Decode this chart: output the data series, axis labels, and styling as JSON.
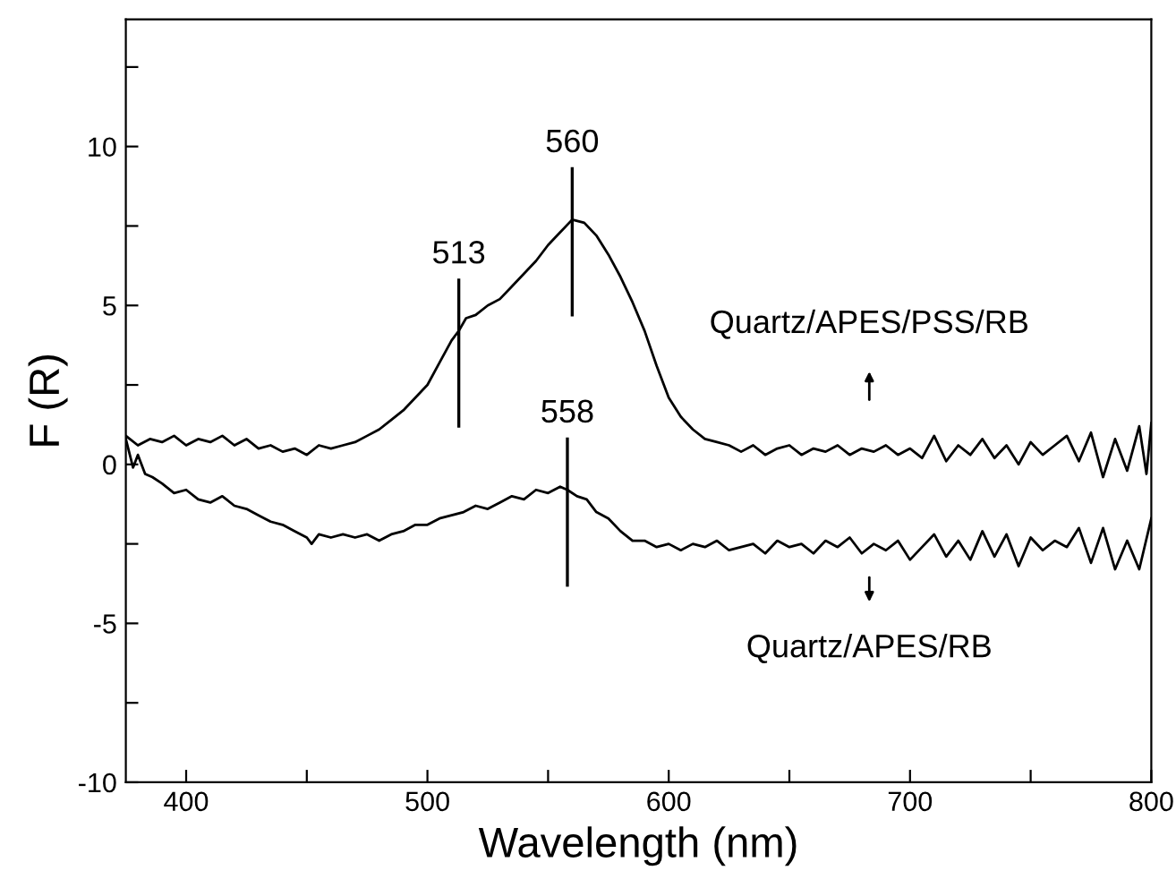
{
  "chart_data": {
    "type": "line",
    "xlabel": "Wavelength (nm)",
    "ylabel": "F (R)",
    "xlim": [
      375,
      800
    ],
    "ylim": [
      -10,
      14
    ],
    "xticks": [
      400,
      {
        "value": 450,
        "label": null
      },
      500,
      {
        "value": 550,
        "label": null
      },
      600,
      {
        "value": 650,
        "label": null
      },
      700,
      {
        "value": 750,
        "label": null
      },
      800
    ],
    "yticks": [
      -10,
      {
        "value": -7.5,
        "label": null
      },
      -5,
      {
        "value": -2.5,
        "label": null
      },
      0,
      {
        "value": 2.5,
        "label": null
      },
      5,
      {
        "value": 7.5,
        "label": null
      },
      10,
      {
        "value": 12.5,
        "label": null
      }
    ],
    "grid": false,
    "legend": "right",
    "marker": "none",
    "line_style": "solid",
    "annotations": [
      {
        "text": "513",
        "x": 513,
        "y": 4.2
      },
      {
        "text": "560",
        "x": 560,
        "y": 7.7
      },
      {
        "text": "558",
        "x": 558,
        "y": -0.8
      }
    ],
    "series": [
      {
        "name": "Quartz/APES/PSS/RB",
        "color": "#000000",
        "x": [
          375,
          380,
          385,
          390,
          395,
          400,
          405,
          410,
          415,
          420,
          425,
          430,
          435,
          440,
          445,
          450,
          455,
          460,
          465,
          470,
          475,
          480,
          485,
          490,
          495,
          500,
          505,
          510,
          513,
          516,
          520,
          525,
          530,
          535,
          540,
          545,
          550,
          555,
          560,
          565,
          570,
          575,
          580,
          585,
          590,
          595,
          600,
          605,
          610,
          615,
          620,
          625,
          630,
          635,
          640,
          645,
          650,
          655,
          660,
          665,
          670,
          675,
          680,
          685,
          690,
          695,
          700,
          705,
          710,
          715,
          720,
          725,
          730,
          735,
          740,
          745,
          750,
          755,
          760,
          765,
          770,
          775,
          780,
          785,
          790,
          795,
          798,
          800
        ],
        "values": [
          0.9,
          0.6,
          0.8,
          0.7,
          0.9,
          0.6,
          0.8,
          0.7,
          0.9,
          0.6,
          0.8,
          0.5,
          0.6,
          0.4,
          0.5,
          0.3,
          0.6,
          0.5,
          0.6,
          0.7,
          0.9,
          1.1,
          1.4,
          1.7,
          2.1,
          2.5,
          3.2,
          3.9,
          4.2,
          4.6,
          4.7,
          5.0,
          5.2,
          5.6,
          6.0,
          6.4,
          6.9,
          7.3,
          7.7,
          7.6,
          7.2,
          6.6,
          5.9,
          5.1,
          4.2,
          3.1,
          2.1,
          1.5,
          1.1,
          0.8,
          0.7,
          0.6,
          0.4,
          0.6,
          0.3,
          0.5,
          0.6,
          0.3,
          0.5,
          0.4,
          0.6,
          0.3,
          0.5,
          0.4,
          0.6,
          0.3,
          0.5,
          0.2,
          0.9,
          0.1,
          0.6,
          0.3,
          0.8,
          0.2,
          0.6,
          0.0,
          0.7,
          0.3,
          0.6,
          0.9,
          0.1,
          1.0,
          -0.4,
          0.8,
          -0.2,
          1.2,
          -0.3,
          1.3
        ]
      },
      {
        "name": "Quartz/APES/RB",
        "color": "#000000",
        "x": [
          375,
          378,
          380,
          383,
          386,
          390,
          395,
          400,
          405,
          410,
          415,
          420,
          425,
          430,
          435,
          440,
          445,
          450,
          452,
          455,
          460,
          465,
          470,
          475,
          480,
          485,
          490,
          495,
          500,
          505,
          510,
          515,
          520,
          525,
          530,
          535,
          540,
          545,
          550,
          555,
          558,
          562,
          566,
          570,
          575,
          580,
          585,
          590,
          595,
          600,
          605,
          610,
          615,
          620,
          625,
          630,
          635,
          640,
          645,
          650,
          655,
          660,
          665,
          670,
          675,
          680,
          685,
          690,
          695,
          700,
          705,
          710,
          715,
          720,
          725,
          730,
          735,
          740,
          745,
          750,
          755,
          760,
          765,
          770,
          775,
          780,
          785,
          790,
          795,
          800
        ],
        "values": [
          0.8,
          -0.1,
          0.3,
          -0.3,
          -0.4,
          -0.6,
          -0.9,
          -0.8,
          -1.1,
          -1.2,
          -1.0,
          -1.3,
          -1.4,
          -1.6,
          -1.8,
          -1.9,
          -2.1,
          -2.3,
          -2.5,
          -2.2,
          -2.3,
          -2.2,
          -2.3,
          -2.2,
          -2.4,
          -2.2,
          -2.1,
          -1.9,
          -1.9,
          -1.7,
          -1.6,
          -1.5,
          -1.3,
          -1.4,
          -1.2,
          -1.0,
          -1.1,
          -0.8,
          -0.9,
          -0.7,
          -0.8,
          -1.0,
          -1.1,
          -1.5,
          -1.7,
          -2.1,
          -2.4,
          -2.4,
          -2.6,
          -2.5,
          -2.7,
          -2.5,
          -2.6,
          -2.4,
          -2.7,
          -2.6,
          -2.5,
          -2.8,
          -2.4,
          -2.6,
          -2.5,
          -2.8,
          -2.4,
          -2.6,
          -2.3,
          -2.8,
          -2.5,
          -2.7,
          -2.4,
          -3.0,
          -2.6,
          -2.2,
          -2.9,
          -2.4,
          -3.0,
          -2.1,
          -2.9,
          -2.2,
          -3.2,
          -2.3,
          -2.7,
          -2.4,
          -2.6,
          -2.0,
          -3.1,
          -2.0,
          -3.3,
          -2.4,
          -3.3,
          -1.7
        ]
      }
    ]
  }
}
